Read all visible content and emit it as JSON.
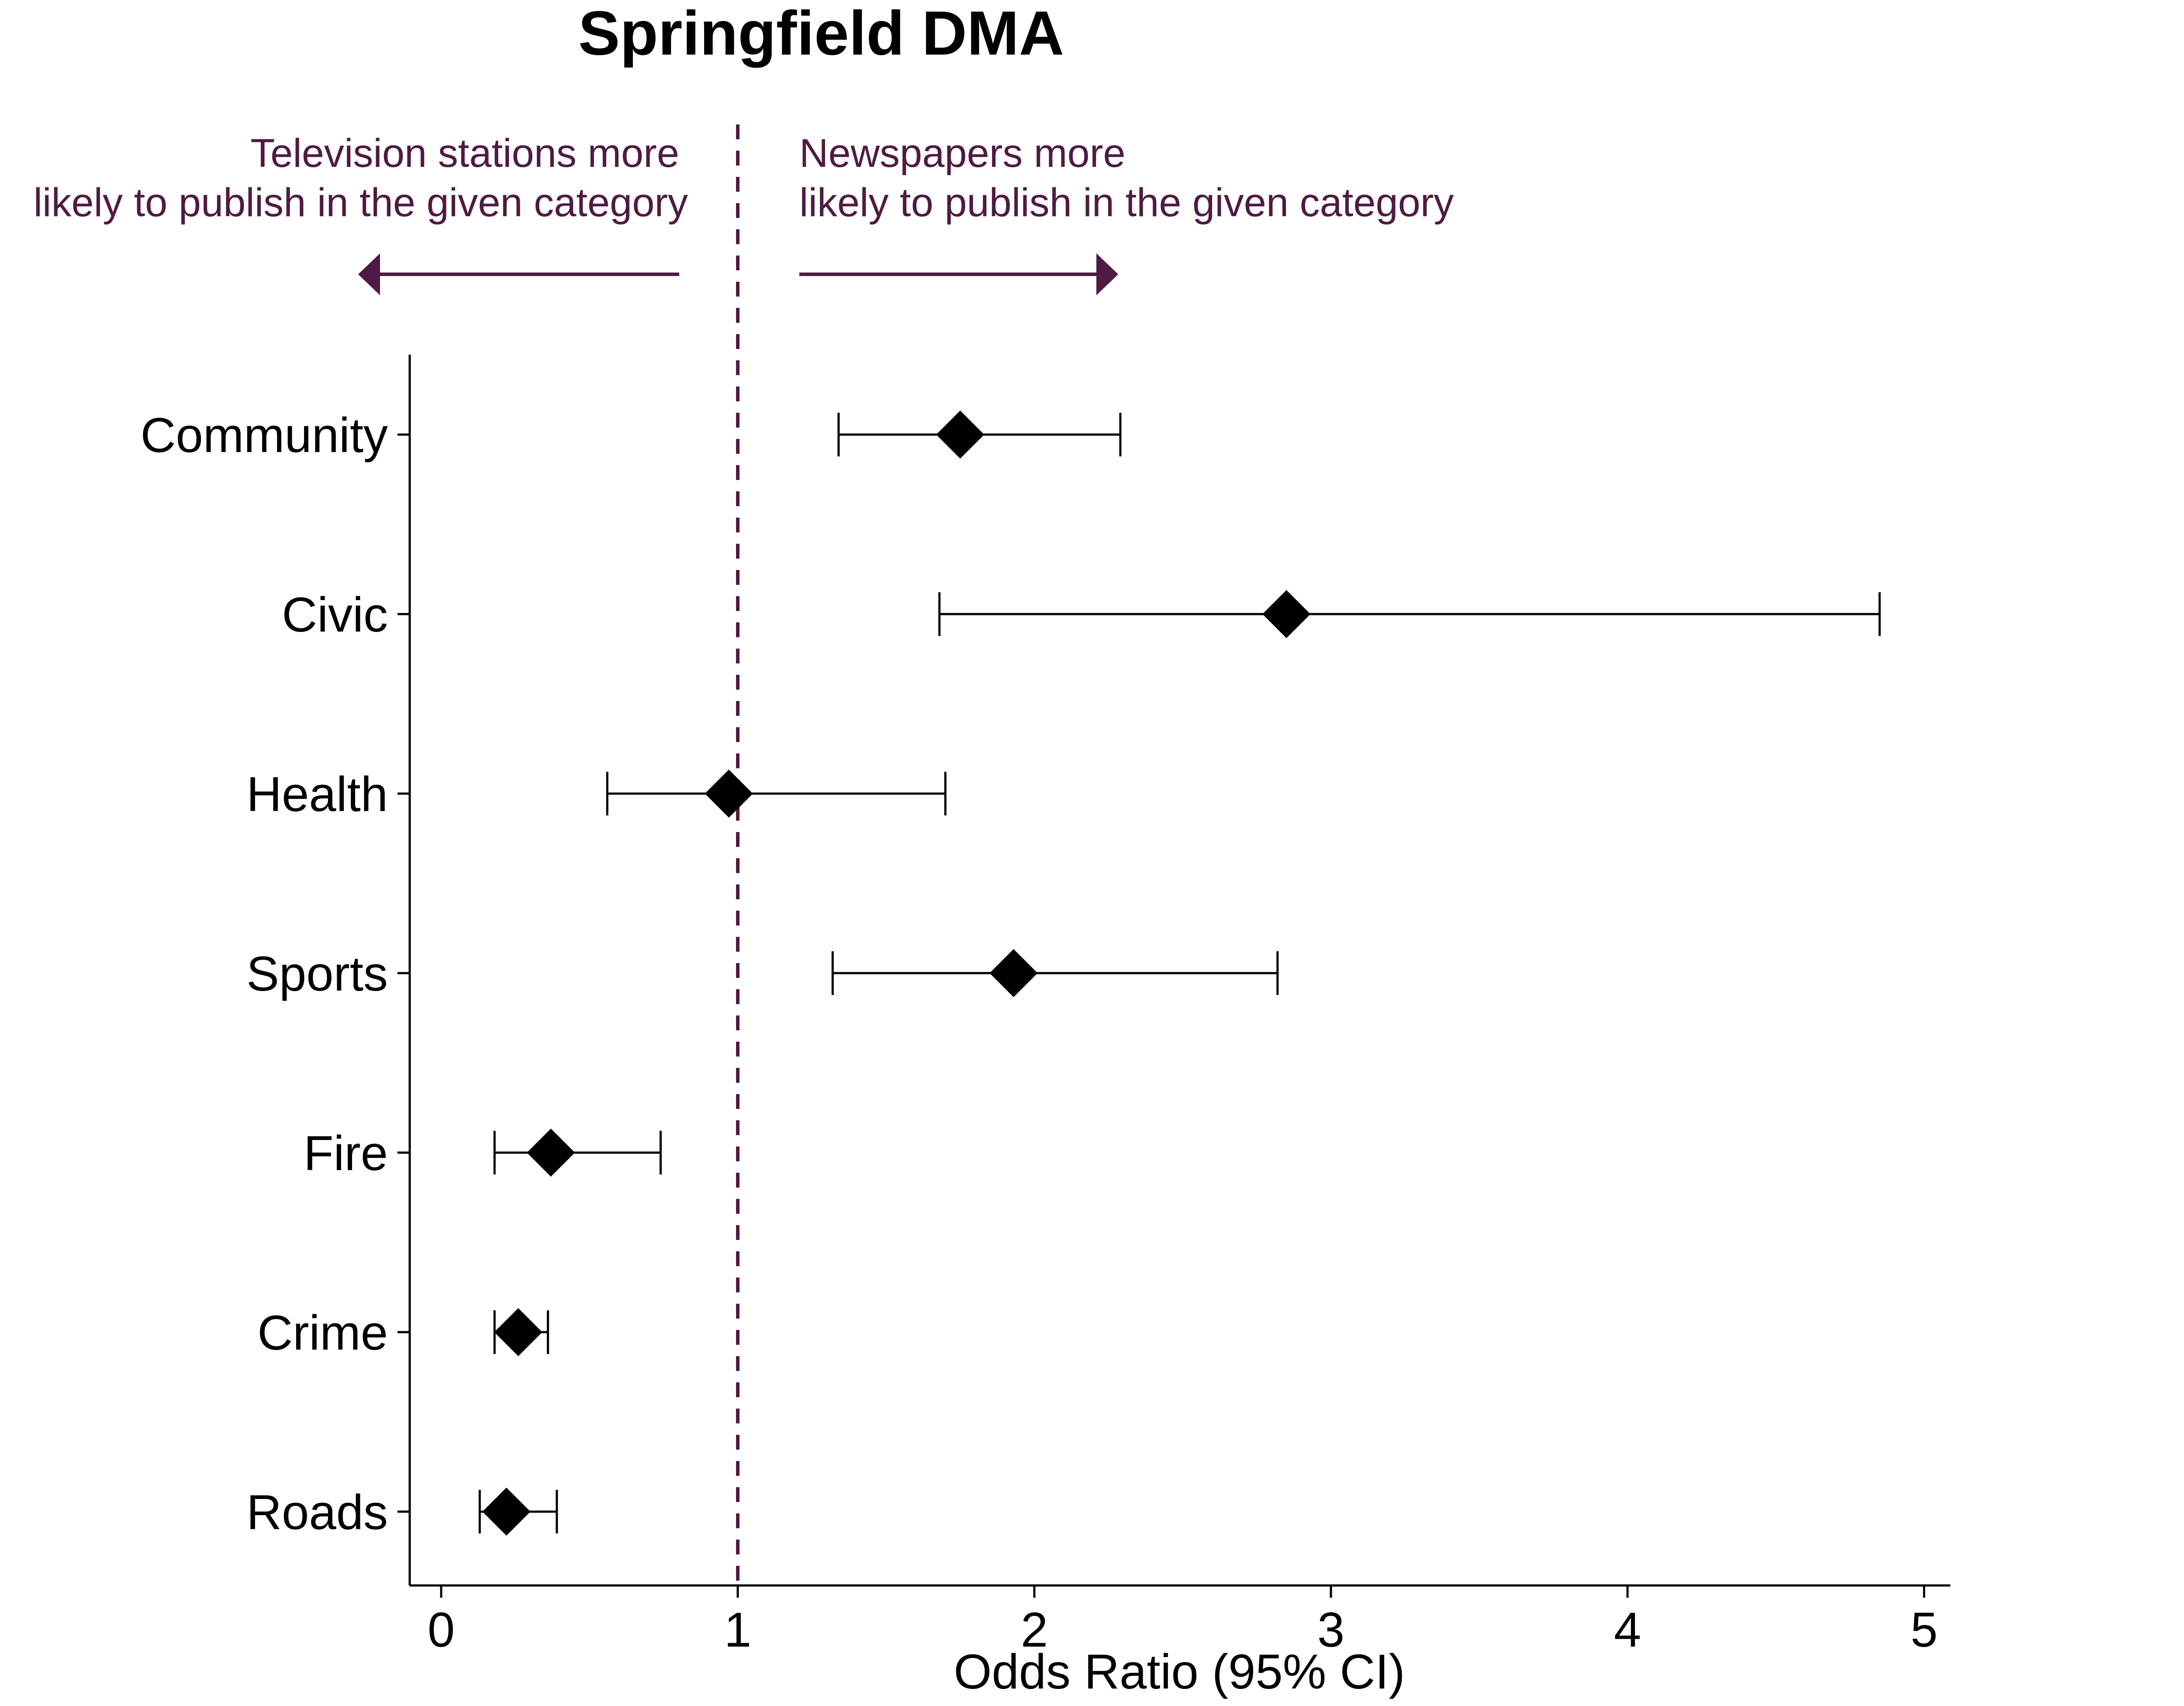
{
  "chart_data": {
    "type": "forest",
    "title": "Springfield DMA",
    "xlabel": "Odds Ratio (95% CI)",
    "ylabel": "",
    "xlim": [
      -0.1,
      5.1
    ],
    "xticks": [
      0,
      1,
      2,
      3,
      4,
      5
    ],
    "reference_line": 1,
    "categories": [
      "Community",
      "Civic",
      "Health",
      "Sports",
      "Fire",
      "Crime",
      "Roads"
    ],
    "estimates": [
      1.75,
      2.85,
      0.97,
      1.93,
      0.37,
      0.26,
      0.22
    ],
    "ci_low": [
      1.34,
      1.68,
      0.56,
      1.32,
      0.18,
      0.18,
      0.13
    ],
    "ci_high": [
      2.29,
      4.85,
      1.7,
      2.82,
      0.74,
      0.36,
      0.39
    ],
    "annotations": {
      "left": [
        "Television stations more",
        "likely to publish in the given category"
      ],
      "right": [
        "Newspapers more",
        "likely to publish in the given category"
      ]
    },
    "colors": {
      "accent": "#4f1a43",
      "marker": "#000000"
    },
    "grid": false,
    "legend": "none"
  }
}
